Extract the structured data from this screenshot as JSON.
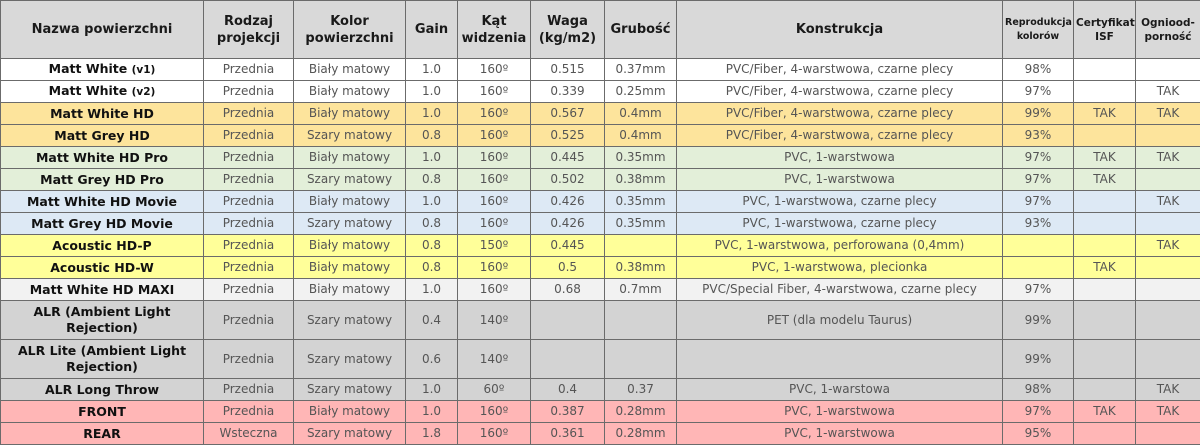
{
  "headers": [
    "Nazwa powierzchni",
    "Rodzaj projekcji",
    "Kolor powierzchni",
    "Gain",
    "Kąt widzenia",
    "Waga (kg/m2)",
    "Grubość",
    "Konstrukcja",
    "Reprodukcja kolorów",
    "Certyfikat ISF",
    "Ogniood-porność"
  ],
  "row_colors": {
    "white": "#ffffff",
    "orange": "#fde49c",
    "green": "#e3efd9",
    "blue": "#dde9f5",
    "yellow": "#ffff99",
    "lightgray": "#f2f2f2",
    "gray": "#d3d3d3",
    "pink": "#ffb6b6"
  },
  "rows": [
    {
      "group": "white",
      "name": "Matt White",
      "suffix": "(v1)",
      "cells": [
        "Przednia",
        "Biały matowy",
        "1.0",
        "160º",
        "0.515",
        "0.37mm",
        "PVC/Fiber, 4-warstwowa, czarne plecy",
        "98%",
        "",
        ""
      ]
    },
    {
      "group": "white",
      "name": "Matt White",
      "suffix": "(v2)",
      "cells": [
        "Przednia",
        "Biały matowy",
        "1.0",
        "160º",
        "0.339",
        "0.25mm",
        "PVC/Fiber, 4-warstwowa, czarne plecy",
        "97%",
        "",
        "TAK"
      ]
    },
    {
      "group": "orange",
      "name": "Matt White HD",
      "suffix": "",
      "cells": [
        "Przednia",
        "Biały matowy",
        "1.0",
        "160º",
        "0.567",
        "0.4mm",
        "PVC/Fiber, 4-warstwowa, czarne plecy",
        "99%",
        "TAK",
        "TAK"
      ]
    },
    {
      "group": "orange",
      "name": "Matt Grey HD",
      "suffix": "",
      "cells": [
        "Przednia",
        "Szary matowy",
        "0.8",
        "160º",
        "0.525",
        "0.4mm",
        "PVC/Fiber, 4-warstwowa, czarne plecy",
        "93%",
        "",
        ""
      ]
    },
    {
      "group": "green",
      "name": "Matt White HD Pro",
      "suffix": "",
      "cells": [
        "Przednia",
        "Biały matowy",
        "1.0",
        "160º",
        "0.445",
        "0.35mm",
        "PVC, 1-warstwowa",
        "97%",
        "TAK",
        "TAK"
      ]
    },
    {
      "group": "green",
      "name": "Matt Grey HD Pro",
      "suffix": "",
      "cells": [
        "Przednia",
        "Szary matowy",
        "0.8",
        "160º",
        "0.502",
        "0.38mm",
        "PVC, 1-warstwowa",
        "97%",
        "TAK",
        ""
      ]
    },
    {
      "group": "blue",
      "name": "Matt White HD Movie",
      "suffix": "",
      "cells": [
        "Przednia",
        "Biały matowy",
        "1.0",
        "160º",
        "0.426",
        "0.35mm",
        "PVC, 1-warstwowa, czarne plecy",
        "97%",
        "",
        "TAK"
      ]
    },
    {
      "group": "blue",
      "name": "Matt Grey HD Movie",
      "suffix": "",
      "cells": [
        "Przednia",
        "Szary matowy",
        "0.8",
        "160º",
        "0.426",
        "0.35mm",
        "PVC, 1-warstwowa, czarne plecy",
        "93%",
        "",
        ""
      ]
    },
    {
      "group": "yellow",
      "name": "Acoustic HD-P",
      "suffix": "",
      "cells": [
        "Przednia",
        "Biały matowy",
        "0.8",
        "150º",
        "0.445",
        "",
        "PVC, 1-warstwowa, perforowana (0,4mm)",
        "",
        "",
        "TAK"
      ]
    },
    {
      "group": "yellow",
      "name": "Acoustic HD-W",
      "suffix": "",
      "cells": [
        "Przednia",
        "Biały matowy",
        "0.8",
        "160º",
        "0.5",
        "0.38mm",
        "PVC, 1-warstwowa, plecionka",
        "",
        "TAK",
        ""
      ]
    },
    {
      "group": "lightgray",
      "name": "Matt White HD MAXI",
      "suffix": "",
      "cells": [
        "Przednia",
        "Biały matowy",
        "1.0",
        "160º",
        "0.68",
        "0.7mm",
        "PVC/Special Fiber, 4-warstwowa, czarne plecy",
        "97%",
        "",
        ""
      ]
    },
    {
      "group": "gray",
      "tall": true,
      "name": "ALR (Ambient Light Rejection)",
      "suffix": "",
      "cells": [
        "Przednia",
        "Szary matowy",
        "0.4",
        "140º",
        "",
        "",
        "PET (dla modelu Taurus)",
        "99%",
        "",
        ""
      ]
    },
    {
      "group": "gray",
      "tall": true,
      "name": "ALR Lite (Ambient Light Rejection)",
      "suffix": "",
      "cells": [
        "Przednia",
        "Szary matowy",
        "0.6",
        "140º",
        "",
        "",
        "",
        "99%",
        "",
        ""
      ]
    },
    {
      "group": "gray",
      "name": "ALR Long Throw",
      "suffix": "",
      "cells": [
        "Przednia",
        "Szary matowy",
        "1.0",
        "60º",
        "0.4",
        "0.37",
        "PVC, 1-warstowa",
        "98%",
        "",
        "TAK"
      ]
    },
    {
      "group": "pink",
      "name": "FRONT",
      "suffix": "",
      "cells": [
        "Przednia",
        "Biały matowy",
        "1.0",
        "160º",
        "0.387",
        "0.28mm",
        "PVC, 1-warstwowa",
        "97%",
        "TAK",
        "TAK"
      ]
    },
    {
      "group": "pink",
      "name": "REAR",
      "suffix": "",
      "cells": [
        "Wsteczna",
        "Szary matowy",
        "1.8",
        "160º",
        "0.361",
        "0.28mm",
        "PVC, 1-warstwowa",
        "95%",
        "",
        ""
      ]
    }
  ]
}
